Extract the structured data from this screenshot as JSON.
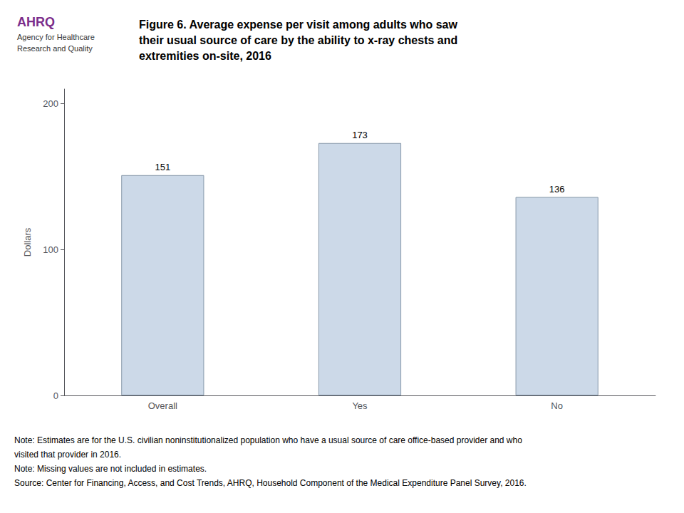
{
  "chart_data": {
    "type": "bar",
    "title": "Figure 6. Average expense per visit among adults who saw\ntheir usual source of care by the ability to x-ray chests and\nextremities on-site, 2016",
    "categories": [
      "Overall",
      "Yes",
      "No"
    ],
    "values": [
      151,
      173,
      136
    ],
    "color": "#ccd9e8",
    "ylabel": "Dollars",
    "ylim": [
      0,
      210
    ],
    "yticks": [
      0,
      100,
      200
    ],
    "grid": false,
    "data_labels": true,
    "annotations": [
      "AHRQ",
      "Agency for Healthcare",
      "Research and Quality",
      "Note: Estimates are for the U.S. civilian noninstitutionalized population who have a usual source of care office-based provider and who",
      "visited that provider in 2016.",
      "Note: Missing values are not included in estimates.",
      "Source: Center for Financing, Access, and Cost Trends, AHRQ, Household Component of the Medical Expenditure Panel Survey, 2016."
    ]
  }
}
